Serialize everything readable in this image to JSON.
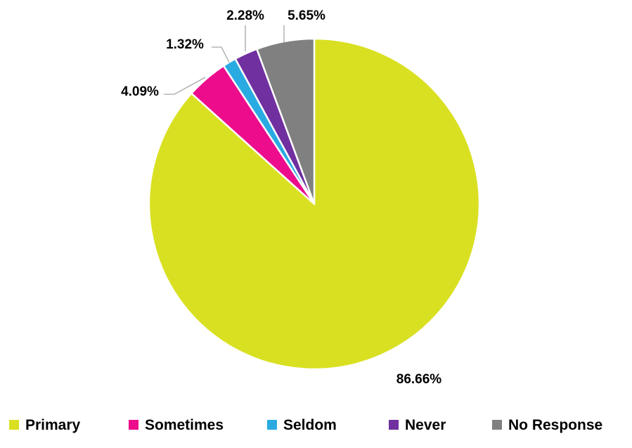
{
  "chart_data": {
    "type": "pie",
    "title": "",
    "categories": [
      "Primary",
      "Sometimes",
      "Seldom",
      "Never",
      "No Response"
    ],
    "values": [
      86.66,
      4.09,
      1.32,
      2.28,
      5.65
    ],
    "labels": [
      "86.66%",
      "4.09%",
      "1.32%",
      "2.28%",
      "5.65%"
    ],
    "colors": [
      "#D9E021",
      "#EC0C8C",
      "#29ABE2",
      "#7030A0",
      "#808080"
    ],
    "start": "12 o'clock",
    "direction": "clockwise",
    "legend": "bottom",
    "leader_color": "#A6A6A6"
  }
}
